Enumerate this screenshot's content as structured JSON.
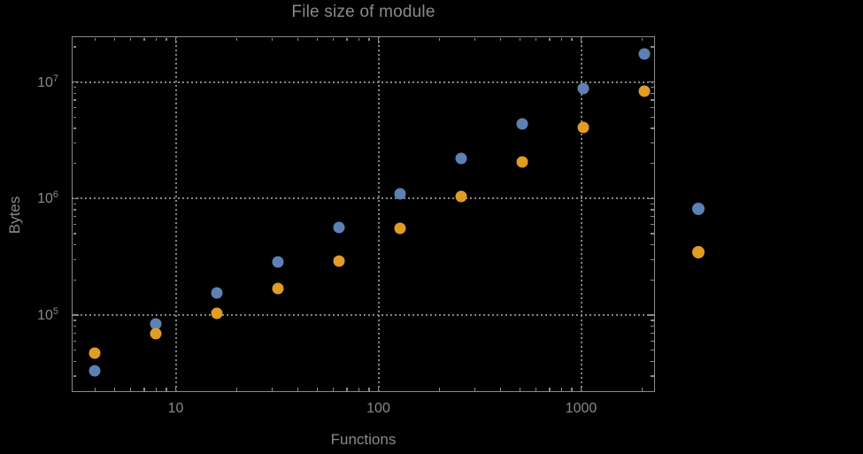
{
  "chart_data": {
    "type": "scatter",
    "title": "File size of module",
    "xlabel": "Functions",
    "ylabel": "Bytes",
    "x_scale": "log",
    "y_scale": "log",
    "x_range": [
      3.07,
      2313
    ],
    "y_range": [
      22000,
      24700000
    ],
    "grid": true,
    "grid_style": "dotted",
    "background_color": "#000000",
    "axis_color": "#8a8a8a",
    "x_ticks": {
      "major": [
        {
          "value": 10,
          "label": "10"
        },
        {
          "value": 100,
          "label": "100"
        },
        {
          "value": 1000,
          "label": "1000"
        }
      ],
      "minor": [
        4,
        5,
        6,
        7,
        8,
        9,
        20,
        30,
        40,
        50,
        60,
        70,
        80,
        90,
        200,
        300,
        400,
        500,
        600,
        700,
        800,
        900,
        2000
      ]
    },
    "y_ticks": {
      "major": [
        {
          "value": 100000,
          "base": "10",
          "exp": "5"
        },
        {
          "value": 1000000,
          "base": "10",
          "exp": "6"
        },
        {
          "value": 10000000,
          "base": "10",
          "exp": "7"
        }
      ],
      "minor": [
        30000,
        40000,
        50000,
        60000,
        70000,
        80000,
        90000,
        200000,
        300000,
        400000,
        500000,
        600000,
        700000,
        800000,
        900000,
        2000000,
        3000000,
        4000000,
        5000000,
        6000000,
        7000000,
        8000000,
        9000000,
        20000000
      ]
    },
    "series": [
      {
        "name": "series-1-blue",
        "color": "#5E81B5",
        "points": [
          [
            4,
            33000
          ],
          [
            8,
            84000
          ],
          [
            16,
            155000
          ],
          [
            32,
            285000
          ],
          [
            64,
            560000
          ],
          [
            128,
            1100000
          ],
          [
            256,
            2200000
          ],
          [
            512,
            4400000
          ],
          [
            1024,
            8800000
          ],
          [
            2048,
            17500000
          ]
        ]
      },
      {
        "name": "series-2-orange",
        "color": "#E19C24",
        "points": [
          [
            4,
            47000
          ],
          [
            8,
            69000
          ],
          [
            16,
            104000
          ],
          [
            32,
            170000
          ],
          [
            64,
            290000
          ],
          [
            128,
            550000
          ],
          [
            256,
            1050000
          ],
          [
            512,
            2050000
          ],
          [
            1024,
            4100000
          ],
          [
            2048,
            8300000
          ]
        ]
      }
    ],
    "legend": {
      "position": "outside-right",
      "labels_visible": false,
      "markers": [
        {
          "series": "series-1-blue",
          "color": "#5E81B5"
        },
        {
          "series": "series-2-orange",
          "color": "#E19C24"
        }
      ]
    }
  }
}
